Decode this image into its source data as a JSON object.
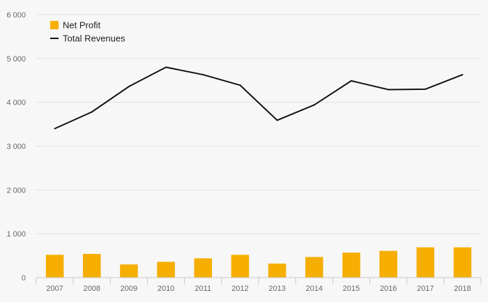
{
  "chart_data": {
    "type": "bar",
    "categories": [
      "2007",
      "2008",
      "2009",
      "2010",
      "2011",
      "2012",
      "2013",
      "2014",
      "2015",
      "2016",
      "2017",
      "2018"
    ],
    "series": [
      {
        "name": "Net Profit",
        "kind": "bar",
        "color": "#f6ae00",
        "values": [
          520,
          540,
          300,
          360,
          440,
          520,
          320,
          470,
          570,
          610,
          690,
          690
        ]
      },
      {
        "name": "Total Revenues",
        "kind": "line",
        "color": "#111111",
        "values": [
          3400,
          3780,
          4360,
          4800,
          4630,
          4390,
          3590,
          3940,
          4490,
          4290,
          4300,
          4630
        ]
      }
    ],
    "y_ticks": [
      "0",
      "1 000",
      "2 000",
      "3 000",
      "4 000",
      "5 000",
      "6 000"
    ],
    "ylim": [
      0,
      6000
    ],
    "title": "",
    "xlabel": "",
    "ylabel": "",
    "grid": true,
    "legend_position": "top-left"
  }
}
